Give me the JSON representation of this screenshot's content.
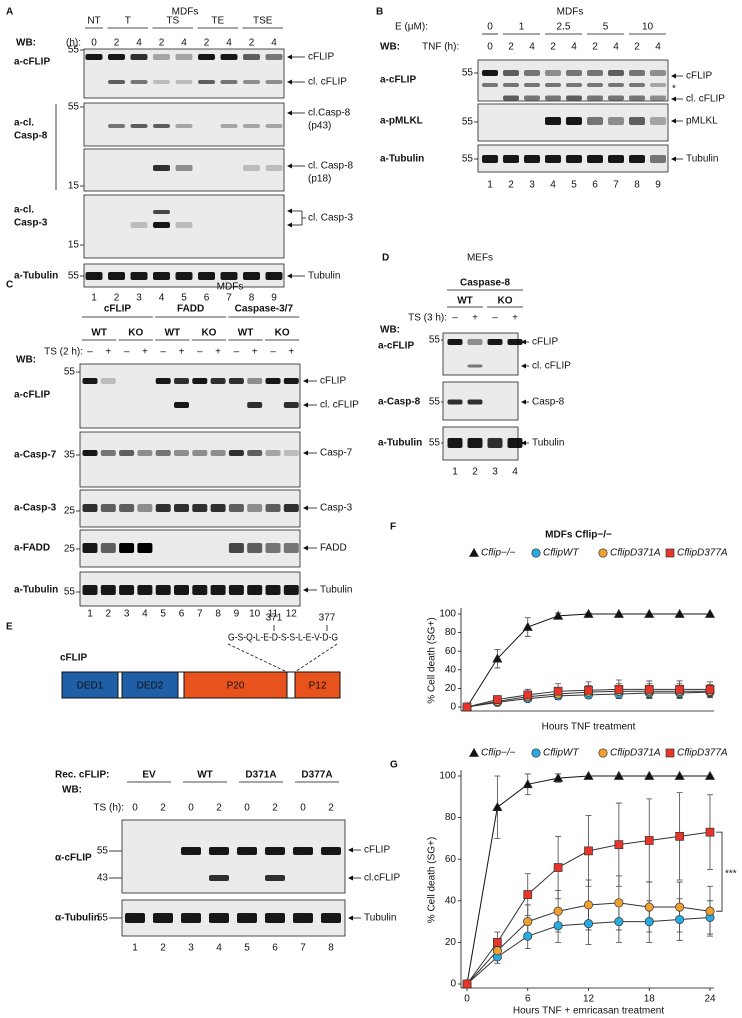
{
  "panels": {
    "A": {
      "letter": "A",
      "title": "MDFs",
      "groups": [
        "NT",
        "T",
        "TS",
        "TE",
        "TSE"
      ],
      "wb": "WB:",
      "time_label": "(h):",
      "times": [
        "0",
        "2",
        "4",
        "2",
        "4",
        "2",
        "4",
        "2",
        "4"
      ],
      "lanes": [
        "1",
        "2",
        "3",
        "4",
        "5",
        "6",
        "7",
        "8",
        "9"
      ],
      "antibodies": [
        [
          "a-cFLIP"
        ],
        [
          "a-cl.",
          "Casp-8"
        ],
        [
          "a-cl.",
          "Casp-3"
        ],
        [
          "a-Tubulin"
        ]
      ],
      "markers": [
        "55",
        "55",
        "15",
        "15",
        "55"
      ],
      "targets": [
        [
          "cFLIP"
        ],
        [
          "cl. cFLIP"
        ],
        [
          "cl.Casp-8",
          "(p43)"
        ],
        [
          "cl. Casp-8",
          "(p18)"
        ],
        [
          "cl. Casp-3"
        ],
        [
          "Tubulin"
        ]
      ]
    },
    "B": {
      "letter": "B",
      "title": "MDFs",
      "conc_label": "E (μM):",
      "concentrations": [
        "0",
        "1",
        "2.5",
        "5",
        "10"
      ],
      "wb": "WB:",
      "time_label": "TNF (h):",
      "times": [
        "0",
        "2",
        "4",
        "2",
        "4",
        "2",
        "4",
        "2",
        "4"
      ],
      "lanes": [
        "1",
        "2",
        "3",
        "4",
        "5",
        "6",
        "7",
        "8",
        "9"
      ],
      "antibodies": [
        [
          "a-cFLIP"
        ],
        [
          "a-pMLKL"
        ],
        [
          "a-Tubulin"
        ]
      ],
      "markers": [
        "55",
        "55",
        "55"
      ],
      "targets": [
        [
          "cFLIP"
        ],
        [
          "cl. cFLIP"
        ],
        [
          "pMLKL"
        ],
        [
          "Tubulin"
        ]
      ],
      "asterisk": "*"
    },
    "C": {
      "letter": "C",
      "title": "MDFs",
      "groups": [
        "cFLIP",
        "FADD",
        "Caspase-3/7"
      ],
      "genotypes": [
        "WT",
        "KO",
        "WT",
        "KO",
        "WT",
        "KO"
      ],
      "wb": "WB:",
      "treatment": "TS (2 h):",
      "signs": [
        "–",
        "+",
        "–",
        "+",
        "–",
        "+",
        "–",
        "+",
        "–",
        "+",
        "–",
        "+"
      ],
      "lanes": [
        "1",
        "2",
        "3",
        "4",
        "5",
        "6",
        "7",
        "8",
        "9",
        "10",
        "11",
        "12"
      ],
      "antibodies": [
        [
          "a-cFLIP"
        ],
        [
          "a-Casp-7"
        ],
        [
          "a-Casp-3"
        ],
        [
          "a-FADD"
        ],
        [
          "a-Tubulin"
        ]
      ],
      "markers": [
        "55",
        "35",
        "25",
        "25",
        "55"
      ],
      "targets": [
        [
          "cFLIP"
        ],
        [
          "cl. cFLIP"
        ],
        [
          "Casp-7"
        ],
        [
          "Casp-3"
        ],
        [
          "FADD"
        ],
        [
          "Tubulin"
        ]
      ]
    },
    "D": {
      "letter": "D",
      "title": "MEFs",
      "group": "Caspase-8",
      "genotypes": [
        "WT",
        "KO"
      ],
      "wb": "WB:",
      "treatment": "TS (3 h):",
      "signs": [
        "–",
        "+",
        "–",
        "+"
      ],
      "lanes": [
        "1",
        "2",
        "3",
        "4"
      ],
      "antibodies": [
        [
          "a-cFLIP"
        ],
        [
          "a-Casp-8"
        ],
        [
          "a-Tubulin"
        ]
      ],
      "markers": [
        "55",
        "55",
        "55"
      ],
      "targets": [
        [
          "cFLIP"
        ],
        [
          "cl. cFLIP"
        ],
        [
          "Casp-8"
        ],
        [
          "Tubulin"
        ]
      ]
    },
    "E": {
      "letter": "E",
      "protein": "cFLIP",
      "domains": [
        "DED1",
        "DED2",
        "P20",
        "P12"
      ],
      "sequence": "G-S-Q-L-E-D-S-S-L-E-V-D-G",
      "residues": [
        "371",
        "377"
      ],
      "construct_label": "Rec. cFLIP:",
      "constructs": [
        "EV",
        "WT",
        "D371A",
        "D377A"
      ],
      "wb": "WB:",
      "time_label": "TS (h):",
      "times": [
        "0",
        "2",
        "0",
        "2",
        "0",
        "2",
        "0",
        "2"
      ],
      "lanes": [
        "1",
        "2",
        "3",
        "4",
        "5",
        "6",
        "7",
        "8"
      ],
      "antibodies": [
        [
          "α-cFLIP"
        ],
        [
          "α-Tubulin"
        ]
      ],
      "markers": [
        "55",
        "43",
        "55"
      ],
      "targets": [
        [
          "cFLIP"
        ],
        [
          "cl.cFLIP"
        ],
        [
          "Tubulin"
        ]
      ]
    },
    "F": {
      "letter": "F"
    },
    "G": {
      "letter": "G"
    }
  },
  "chart_data": [
    {
      "type": "line",
      "title": "MDFs Cflip−/−",
      "ylabel": "% Cell death (SG+)",
      "xlabel": "Hours TNF treatment",
      "categories": [
        null,
        null,
        null,
        null,
        null,
        null,
        null,
        null,
        null
      ],
      "ylim": [
        0,
        100
      ],
      "yticks": [
        0,
        20,
        40,
        60,
        80,
        100
      ],
      "series": [
        {
          "name": "Cflip−/−",
          "color": "#111111",
          "marker": "triangle",
          "values": [
            0,
            52,
            86,
            98,
            100,
            100,
            100,
            100,
            100
          ],
          "errors": [
            2,
            10,
            10,
            3,
            1,
            0,
            0,
            0,
            0
          ]
        },
        {
          "name": "CflipWT",
          "color": "#29abe2",
          "marker": "circle",
          "values": [
            0,
            5,
            9,
            12,
            13,
            14,
            15,
            15,
            16
          ],
          "errors": [
            1,
            2,
            3,
            4,
            4,
            5,
            5,
            5,
            5
          ]
        },
        {
          "name": "CflipD371A",
          "color": "#f0a030",
          "marker": "circle",
          "values": [
            0,
            6,
            11,
            14,
            16,
            17,
            17,
            17,
            17
          ],
          "errors": [
            1,
            3,
            5,
            6,
            7,
            8,
            8,
            8,
            7
          ]
        },
        {
          "name": "CflipD377A",
          "color": "#e8352a",
          "marker": "square",
          "values": [
            0,
            8,
            13,
            17,
            18,
            19,
            19,
            19,
            19
          ],
          "errors": [
            1,
            3,
            6,
            8,
            9,
            10,
            9,
            9,
            8
          ]
        }
      ]
    },
    {
      "type": "line",
      "ylabel": "% Cell death (SG+)",
      "xlabel": "Hours TNF + emricasan treatment",
      "x": [
        0,
        3,
        6,
        9,
        12,
        15,
        18,
        21,
        24
      ],
      "xlim": [
        0,
        24
      ],
      "xticks": [
        0,
        6,
        12,
        18,
        24
      ],
      "ylim": [
        0,
        100
      ],
      "yticks": [
        0,
        20,
        40,
        60,
        80,
        100
      ],
      "annotation": "***",
      "series": [
        {
          "name": "Cflip−/−",
          "color": "#111111",
          "marker": "triangle",
          "values": [
            0,
            85,
            96,
            99,
            100,
            100,
            100,
            100,
            100
          ],
          "errors": [
            0,
            15,
            5,
            2,
            0,
            0,
            0,
            0,
            0
          ]
        },
        {
          "name": "CflipWT",
          "color": "#29abe2",
          "marker": "circle",
          "values": [
            0,
            13,
            23,
            28,
            29,
            30,
            30,
            31,
            32
          ],
          "errors": [
            1,
            3,
            6,
            8,
            10,
            10,
            10,
            10,
            8
          ]
        },
        {
          "name": "CflipD371A",
          "color": "#f0a030",
          "marker": "circle",
          "values": [
            0,
            16,
            30,
            35,
            38,
            39,
            37,
            37,
            35
          ],
          "errors": [
            1,
            4,
            8,
            10,
            12,
            13,
            12,
            12,
            12
          ]
        },
        {
          "name": "CflipD377A",
          "color": "#e8352a",
          "marker": "square",
          "values": [
            0,
            20,
            43,
            56,
            64,
            67,
            69,
            71,
            73
          ],
          "errors": [
            2,
            5,
            10,
            15,
            17,
            20,
            20,
            21,
            18
          ]
        }
      ]
    }
  ]
}
